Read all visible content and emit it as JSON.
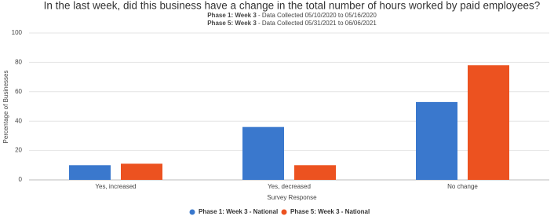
{
  "chart_data": {
    "type": "bar",
    "title": "In the last week, did this business have a change in the total number of hours worked by paid employees?",
    "subtitles": [
      {
        "bold": "Phase 1: Week 3",
        "text": " - Data Collected 05/10/2020 to 05/16/2020"
      },
      {
        "bold": "Phase 5: Week 3",
        "text": " - Data Collected 05/31/2021 to 06/06/2021"
      }
    ],
    "x_label": "Survey Response",
    "y_label": "Percentage of Businesses",
    "categories": [
      "Yes, increased",
      "Yes, decreased",
      "No change"
    ],
    "series": [
      {
        "name": "Phase 1: Week 3 - National",
        "color": "#3a78cd",
        "values": [
          10,
          36,
          53
        ]
      },
      {
        "name": "Phase 5: Week 3 - National",
        "color": "#ec5220",
        "values": [
          11,
          10,
          78
        ]
      }
    ],
    "ylim": [
      0,
      100
    ],
    "yticks": [
      0,
      20,
      40,
      60,
      80,
      100
    ],
    "grid": true
  }
}
